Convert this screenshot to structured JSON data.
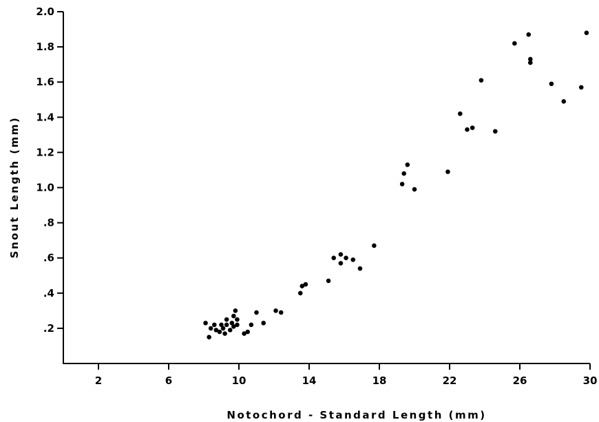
{
  "chart_data": {
    "type": "scatter",
    "title": "",
    "xlabel": "Notochord - Standard Length (mm)",
    "ylabel": "Snout Length (mm)",
    "xlim": [
      0,
      30
    ],
    "ylim": [
      0,
      2.0
    ],
    "x_ticks": [
      2,
      6,
      10,
      14,
      18,
      22,
      26,
      30
    ],
    "x_tick_labels": [
      "2",
      "6",
      "10",
      "14",
      "18",
      "22",
      "26",
      "30"
    ],
    "y_ticks": [
      0.2,
      0.4,
      0.6,
      0.8,
      1.0,
      1.2,
      1.4,
      1.6,
      1.8,
      2.0
    ],
    "y_tick_labels": [
      ".2",
      ".4",
      ".6",
      ".8",
      "1.0",
      "1.2",
      "1.4",
      "1.6",
      "1.8",
      "2.0"
    ],
    "grid": false,
    "legend": "none",
    "marker_color": "#000000",
    "points": [
      {
        "x": 8.1,
        "y": 0.23
      },
      {
        "x": 8.3,
        "y": 0.15
      },
      {
        "x": 8.4,
        "y": 0.2
      },
      {
        "x": 8.6,
        "y": 0.22
      },
      {
        "x": 8.7,
        "y": 0.19
      },
      {
        "x": 8.9,
        "y": 0.18
      },
      {
        "x": 9.0,
        "y": 0.22
      },
      {
        "x": 9.1,
        "y": 0.2
      },
      {
        "x": 9.2,
        "y": 0.17
      },
      {
        "x": 9.3,
        "y": 0.25
      },
      {
        "x": 9.3,
        "y": 0.22
      },
      {
        "x": 9.5,
        "y": 0.19
      },
      {
        "x": 9.6,
        "y": 0.23
      },
      {
        "x": 9.7,
        "y": 0.27
      },
      {
        "x": 9.7,
        "y": 0.21
      },
      {
        "x": 9.8,
        "y": 0.3
      },
      {
        "x": 9.9,
        "y": 0.25
      },
      {
        "x": 9.9,
        "y": 0.22
      },
      {
        "x": 10.3,
        "y": 0.17
      },
      {
        "x": 10.5,
        "y": 0.18
      },
      {
        "x": 10.7,
        "y": 0.22
      },
      {
        "x": 11.0,
        "y": 0.29
      },
      {
        "x": 11.4,
        "y": 0.23
      },
      {
        "x": 12.1,
        "y": 0.3
      },
      {
        "x": 12.4,
        "y": 0.29
      },
      {
        "x": 13.5,
        "y": 0.4
      },
      {
        "x": 13.6,
        "y": 0.44
      },
      {
        "x": 13.8,
        "y": 0.45
      },
      {
        "x": 15.1,
        "y": 0.47
      },
      {
        "x": 15.4,
        "y": 0.6
      },
      {
        "x": 15.8,
        "y": 0.62
      },
      {
        "x": 15.8,
        "y": 0.57
      },
      {
        "x": 16.1,
        "y": 0.6
      },
      {
        "x": 16.5,
        "y": 0.59
      },
      {
        "x": 16.9,
        "y": 0.54
      },
      {
        "x": 17.7,
        "y": 0.67
      },
      {
        "x": 19.3,
        "y": 1.02
      },
      {
        "x": 19.4,
        "y": 1.08
      },
      {
        "x": 19.6,
        "y": 1.13
      },
      {
        "x": 20.0,
        "y": 0.99
      },
      {
        "x": 21.9,
        "y": 1.09
      },
      {
        "x": 22.6,
        "y": 1.42
      },
      {
        "x": 23.0,
        "y": 1.33
      },
      {
        "x": 23.3,
        "y": 1.34
      },
      {
        "x": 23.8,
        "y": 1.61
      },
      {
        "x": 24.6,
        "y": 1.32
      },
      {
        "x": 25.7,
        "y": 1.82
      },
      {
        "x": 26.5,
        "y": 1.87
      },
      {
        "x": 26.6,
        "y": 1.73
      },
      {
        "x": 26.6,
        "y": 1.71
      },
      {
        "x": 27.8,
        "y": 1.59
      },
      {
        "x": 28.5,
        "y": 1.49
      },
      {
        "x": 29.5,
        "y": 1.57
      },
      {
        "x": 29.8,
        "y": 1.88
      }
    ]
  }
}
